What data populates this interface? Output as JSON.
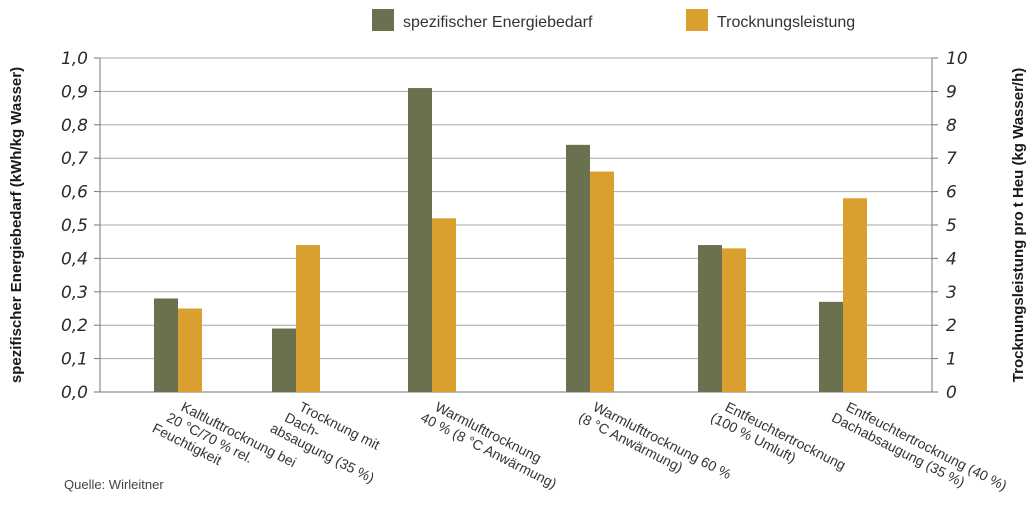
{
  "chart_data": {
    "type": "bar",
    "categories": [
      [
        "Kaltlufttrocknung bei",
        "20 °C/70 % rel.",
        "Feuchtigkeit"
      ],
      [
        "Trocknung mit",
        "Dach-",
        "absaugung (35 %)"
      ],
      [
        "Warmlufttrocknung",
        "40 % (8 °C Anwärmung)"
      ],
      [
        "Warmlufttrocknung 60 %",
        "(8 °C Anwärmung)"
      ],
      [
        "Entfeuchtertrocknung",
        "(100 % Umluft)"
      ],
      [
        "Entfeuchtertrocknung (40 %)",
        "Dachabsaugung (35 %)"
      ]
    ],
    "series": [
      {
        "name": "spezifischer Energiebedarf",
        "color": "#69714f",
        "axis": "left",
        "values": [
          0.28,
          0.19,
          0.91,
          0.74,
          0.44,
          0.27
        ]
      },
      {
        "name": "Trocknungsleistung",
        "color": "#d9a030",
        "axis": "right",
        "values": [
          2.5,
          4.4,
          5.2,
          6.6,
          4.3,
          5.8
        ]
      }
    ],
    "y_left": {
      "label": "spezifischer Energiebedarf (kWh/kg Wasser)",
      "range": [
        0,
        1.0
      ],
      "ticks": [
        "0,0",
        "0,1",
        "0,2",
        "0,3",
        "0,4",
        "0,5",
        "0,6",
        "0,7",
        "0,8",
        "0,9",
        "1,0"
      ]
    },
    "y_right": {
      "label": "Trocknungsleistung pro t Heu (kg Wasser/h)",
      "range": [
        0,
        10
      ],
      "ticks": [
        "0",
        "1",
        "2",
        "3",
        "4",
        "5",
        "6",
        "7",
        "8",
        "9",
        "10"
      ]
    },
    "grid": true,
    "legend_position": "top",
    "source": "Quelle: Wirleitner"
  }
}
